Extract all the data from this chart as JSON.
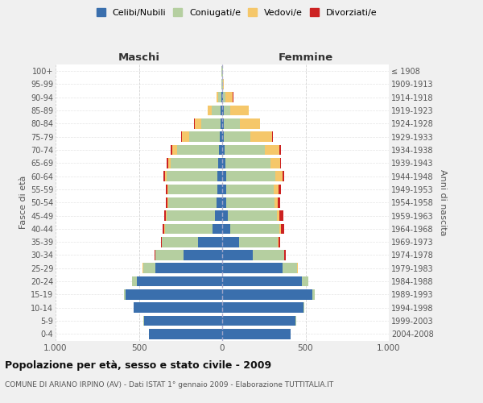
{
  "age_groups": [
    "0-4",
    "5-9",
    "10-14",
    "15-19",
    "20-24",
    "25-29",
    "30-34",
    "35-39",
    "40-44",
    "45-49",
    "50-54",
    "55-59",
    "60-64",
    "65-69",
    "70-74",
    "75-79",
    "80-84",
    "85-89",
    "90-94",
    "95-99",
    "100+"
  ],
  "birth_years": [
    "2004-2008",
    "1999-2003",
    "1994-1998",
    "1989-1993",
    "1984-1988",
    "1979-1983",
    "1974-1978",
    "1969-1973",
    "1964-1968",
    "1959-1963",
    "1954-1958",
    "1949-1953",
    "1944-1948",
    "1939-1943",
    "1934-1938",
    "1929-1933",
    "1924-1928",
    "1919-1923",
    "1914-1918",
    "1909-1913",
    "≤ 1908"
  ],
  "males": {
    "celibi": [
      440,
      470,
      530,
      580,
      510,
      400,
      230,
      145,
      60,
      45,
      35,
      30,
      30,
      25,
      20,
      15,
      10,
      8,
      5,
      2,
      2
    ],
    "coniugati": [
      2,
      2,
      3,
      10,
      30,
      75,
      170,
      215,
      285,
      290,
      290,
      295,
      305,
      285,
      250,
      185,
      115,
      55,
      20,
      3,
      2
    ],
    "vedovi": [
      0,
      0,
      0,
      0,
      1,
      1,
      1,
      1,
      1,
      2,
      3,
      5,
      8,
      15,
      30,
      40,
      40,
      25,
      10,
      1,
      0
    ],
    "divorziati": [
      0,
      0,
      0,
      0,
      1,
      3,
      5,
      8,
      10,
      10,
      8,
      10,
      10,
      8,
      10,
      5,
      2,
      0,
      0,
      0,
      0
    ]
  },
  "females": {
    "nubili": [
      410,
      440,
      490,
      540,
      480,
      360,
      185,
      100,
      50,
      35,
      25,
      25,
      25,
      20,
      15,
      10,
      10,
      8,
      5,
      2,
      2
    ],
    "coniugate": [
      2,
      3,
      5,
      15,
      35,
      90,
      185,
      235,
      295,
      295,
      290,
      285,
      295,
      270,
      240,
      160,
      95,
      40,
      15,
      3,
      2
    ],
    "vedove": [
      0,
      0,
      0,
      0,
      1,
      2,
      3,
      5,
      8,
      15,
      20,
      30,
      40,
      60,
      90,
      130,
      120,
      110,
      45,
      5,
      1
    ],
    "divorziate": [
      0,
      0,
      0,
      1,
      2,
      3,
      8,
      10,
      20,
      20,
      15,
      15,
      12,
      5,
      8,
      3,
      3,
      2,
      1,
      0,
      0
    ]
  },
  "colors": {
    "celibi": "#3a6fad",
    "coniugati": "#b5cfa0",
    "vedovi": "#f5c76a",
    "divorziati": "#cc2222"
  },
  "xlim": 1000,
  "title": "Popolazione per età, sesso e stato civile - 2009",
  "subtitle": "COMUNE DI ARIANO IRPINO (AV) - Dati ISTAT 1° gennaio 2009 - Elaborazione TUTTITALIA.IT",
  "ylabel_left": "Fasce di età",
  "ylabel_right": "Anni di nascita",
  "xlabel_left": "Maschi",
  "xlabel_right": "Femmine",
  "legend_labels": [
    "Celibi/Nubili",
    "Coniugati/e",
    "Vedovi/e",
    "Divorziati/e"
  ],
  "bg_color": "#f0f0f0",
  "plot_bg": "#ffffff"
}
